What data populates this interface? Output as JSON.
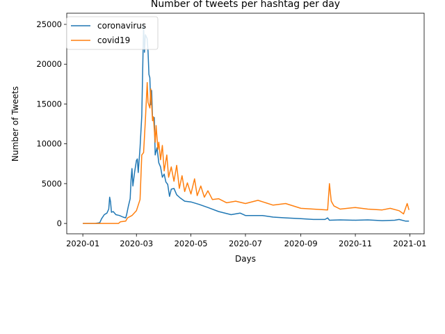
{
  "chart_data": {
    "type": "line",
    "title": "Number of tweets per hashtag per day",
    "xlabel": "Days",
    "ylabel": "Number of Tweets",
    "xlim": [
      "2019-12-14",
      "2021-01-17"
    ],
    "ylim": [
      -1300,
      26400
    ],
    "x_ticks": [
      "2020-01-01",
      "2020-03-01",
      "2020-05-01",
      "2020-07-01",
      "2020-09-01",
      "2020-11-01",
      "2021-01-01"
    ],
    "x_tick_labels": [
      "2020-01",
      "2020-03",
      "2020-05",
      "2020-07",
      "2020-09",
      "2020-11",
      "2021-01"
    ],
    "y_ticks": [
      0,
      5000,
      10000,
      15000,
      20000,
      25000
    ],
    "legend_position": "top-left",
    "grid": false,
    "series": [
      {
        "name": "coronavirus",
        "color": "#1f77b4",
        "points": [
          [
            "2020-01-01",
            0
          ],
          [
            "2020-01-15",
            0
          ],
          [
            "2020-01-20",
            100
          ],
          [
            "2020-01-22",
            600
          ],
          [
            "2020-01-25",
            1100
          ],
          [
            "2020-01-28",
            1300
          ],
          [
            "2020-01-30",
            1800
          ],
          [
            "2020-01-31",
            3300
          ],
          [
            "2020-02-01",
            2700
          ],
          [
            "2020-02-02",
            1400
          ],
          [
            "2020-02-04",
            1500
          ],
          [
            "2020-02-07",
            1100
          ],
          [
            "2020-02-11",
            1000
          ],
          [
            "2020-02-15",
            800
          ],
          [
            "2020-02-18",
            700
          ],
          [
            "2020-02-19",
            1100
          ],
          [
            "2020-02-21",
            2200
          ],
          [
            "2020-02-23",
            3100
          ],
          [
            "2020-02-24",
            5500
          ],
          [
            "2020-02-25",
            6900
          ],
          [
            "2020-02-26",
            4700
          ],
          [
            "2020-02-28",
            6500
          ],
          [
            "2020-03-01",
            7900
          ],
          [
            "2020-03-02",
            8100
          ],
          [
            "2020-03-03",
            6400
          ],
          [
            "2020-03-05",
            9500
          ],
          [
            "2020-03-07",
            13500
          ],
          [
            "2020-03-09",
            24900
          ],
          [
            "2020-03-10",
            21500
          ],
          [
            "2020-03-11",
            23700
          ],
          [
            "2020-03-13",
            23200
          ],
          [
            "2020-03-14",
            21600
          ],
          [
            "2020-03-15",
            18700
          ],
          [
            "2020-03-16",
            18300
          ],
          [
            "2020-03-17",
            14900
          ],
          [
            "2020-03-18",
            16700
          ],
          [
            "2020-03-19",
            13200
          ],
          [
            "2020-03-21",
            13300
          ],
          [
            "2020-03-22",
            8600
          ],
          [
            "2020-03-24",
            9500
          ],
          [
            "2020-03-26",
            7600
          ],
          [
            "2020-03-28",
            7100
          ],
          [
            "2020-03-30",
            5800
          ],
          [
            "2020-04-01",
            6200
          ],
          [
            "2020-04-03",
            5200
          ],
          [
            "2020-04-05",
            4900
          ],
          [
            "2020-04-07",
            3400
          ],
          [
            "2020-04-09",
            4300
          ],
          [
            "2020-04-12",
            4400
          ],
          [
            "2020-04-15",
            3600
          ],
          [
            "2020-04-19",
            3200
          ],
          [
            "2020-04-24",
            2800
          ],
          [
            "2020-05-01",
            2700
          ],
          [
            "2020-05-10",
            2400
          ],
          [
            "2020-05-20",
            2000
          ],
          [
            "2020-06-01",
            1500
          ],
          [
            "2020-06-15",
            1100
          ],
          [
            "2020-06-25",
            1300
          ],
          [
            "2020-07-01",
            1000
          ],
          [
            "2020-07-20",
            1000
          ],
          [
            "2020-08-01",
            800
          ],
          [
            "2020-08-15",
            700
          ],
          [
            "2020-09-01",
            600
          ],
          [
            "2020-09-15",
            500
          ],
          [
            "2020-09-28",
            500
          ],
          [
            "2020-10-01",
            700
          ],
          [
            "2020-10-03",
            400
          ],
          [
            "2020-10-15",
            450
          ],
          [
            "2020-11-01",
            400
          ],
          [
            "2020-11-15",
            450
          ],
          [
            "2020-12-01",
            350
          ],
          [
            "2020-12-15",
            400
          ],
          [
            "2020-12-20",
            500
          ],
          [
            "2020-12-27",
            300
          ],
          [
            "2020-12-31",
            300
          ]
        ]
      },
      {
        "name": "covid19",
        "color": "#ff7f0e",
        "points": [
          [
            "2020-01-01",
            0
          ],
          [
            "2020-02-01",
            0
          ],
          [
            "2020-02-10",
            0
          ],
          [
            "2020-02-12",
            200
          ],
          [
            "2020-02-18",
            300
          ],
          [
            "2020-02-20",
            700
          ],
          [
            "2020-02-25",
            1000
          ],
          [
            "2020-03-01",
            1600
          ],
          [
            "2020-03-05",
            3000
          ],
          [
            "2020-03-07",
            8600
          ],
          [
            "2020-03-09",
            8900
          ],
          [
            "2020-03-11",
            13000
          ],
          [
            "2020-03-13",
            17700
          ],
          [
            "2020-03-14",
            15200
          ],
          [
            "2020-03-16",
            14500
          ],
          [
            "2020-03-17",
            16900
          ],
          [
            "2020-03-19",
            12900
          ],
          [
            "2020-03-20",
            13400
          ],
          [
            "2020-03-22",
            10200
          ],
          [
            "2020-03-23",
            12300
          ],
          [
            "2020-03-25",
            9300
          ],
          [
            "2020-03-26",
            10200
          ],
          [
            "2020-03-28",
            8000
          ],
          [
            "2020-03-30",
            9800
          ],
          [
            "2020-04-01",
            6600
          ],
          [
            "2020-04-04",
            8600
          ],
          [
            "2020-04-06",
            5800
          ],
          [
            "2020-04-09",
            7100
          ],
          [
            "2020-04-12",
            5300
          ],
          [
            "2020-04-15",
            7300
          ],
          [
            "2020-04-18",
            4400
          ],
          [
            "2020-04-21",
            6000
          ],
          [
            "2020-04-24",
            4000
          ],
          [
            "2020-04-27",
            5100
          ],
          [
            "2020-05-01",
            3700
          ],
          [
            "2020-05-05",
            5600
          ],
          [
            "2020-05-08",
            3500
          ],
          [
            "2020-05-12",
            4700
          ],
          [
            "2020-05-16",
            3300
          ],
          [
            "2020-05-20",
            4100
          ],
          [
            "2020-05-25",
            3000
          ],
          [
            "2020-06-01",
            3100
          ],
          [
            "2020-06-10",
            2600
          ],
          [
            "2020-06-20",
            2800
          ],
          [
            "2020-07-01",
            2500
          ],
          [
            "2020-07-15",
            2900
          ],
          [
            "2020-08-01",
            2300
          ],
          [
            "2020-08-15",
            2500
          ],
          [
            "2020-09-01",
            1900
          ],
          [
            "2020-09-15",
            1800
          ],
          [
            "2020-10-01",
            1700
          ],
          [
            "2020-10-03",
            5000
          ],
          [
            "2020-10-05",
            2800
          ],
          [
            "2020-10-08",
            2200
          ],
          [
            "2020-10-15",
            1800
          ],
          [
            "2020-11-01",
            2000
          ],
          [
            "2020-11-15",
            1800
          ],
          [
            "2020-12-01",
            1700
          ],
          [
            "2020-12-10",
            1900
          ],
          [
            "2020-12-20",
            1600
          ],
          [
            "2020-12-25",
            1200
          ],
          [
            "2020-12-29",
            2500
          ],
          [
            "2020-12-31",
            1700
          ]
        ]
      }
    ]
  }
}
